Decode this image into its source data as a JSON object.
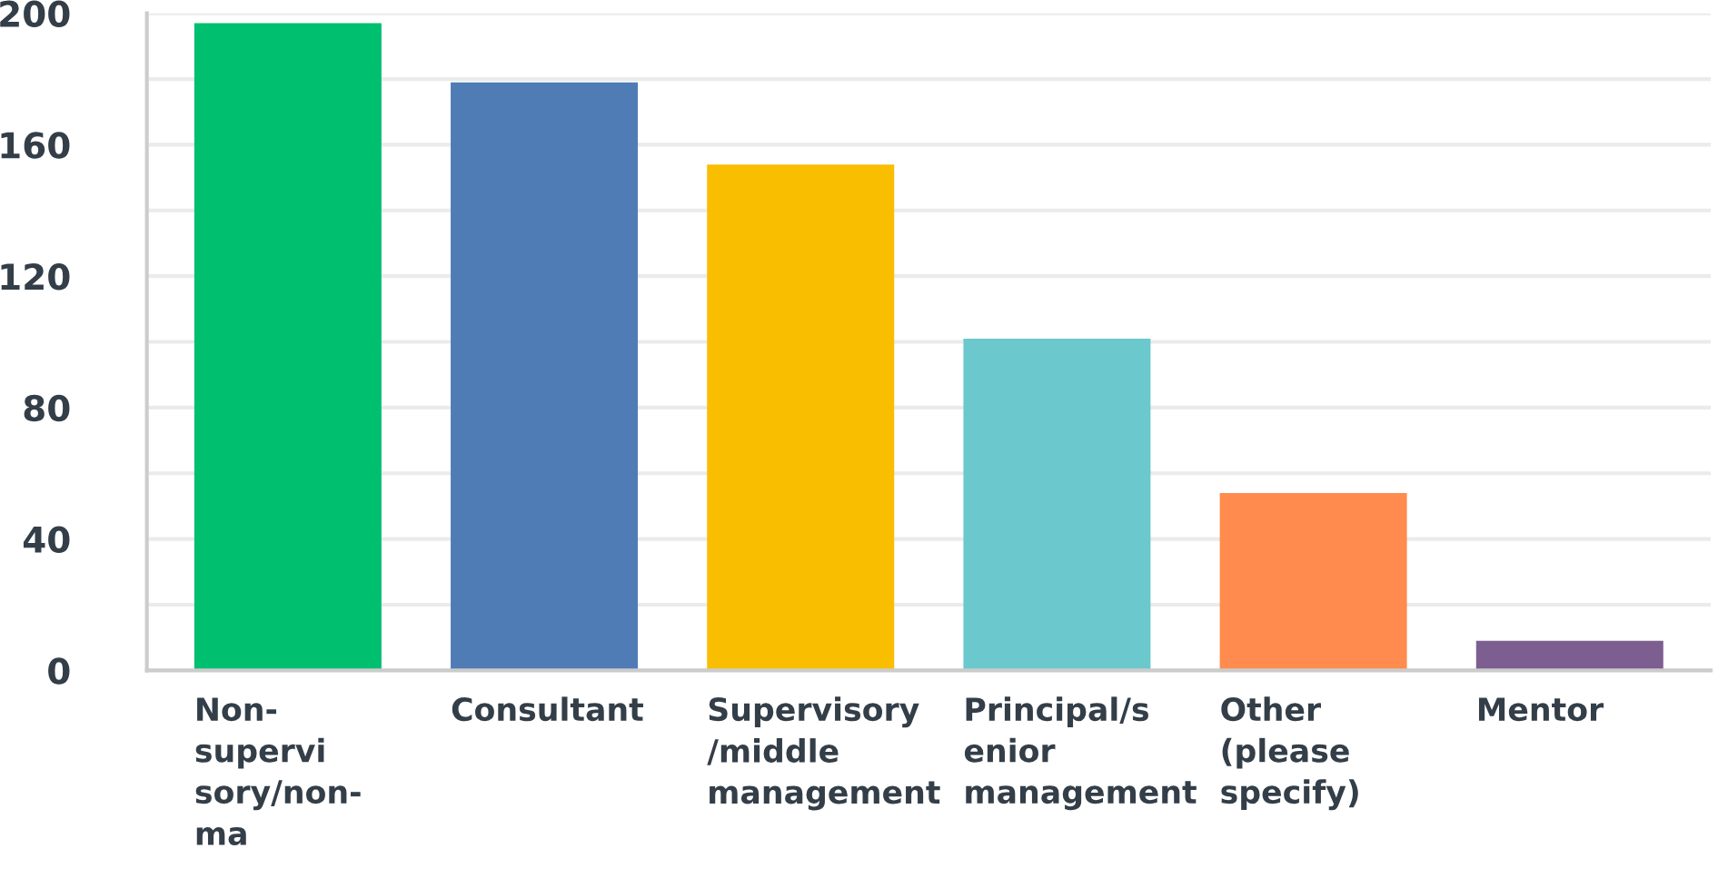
{
  "chart_data": {
    "type": "bar",
    "categories": [
      "Non-\nsupervi\nsory/non-\nma",
      "Consultant",
      "Supervisory\n/middle\nmanagement",
      "Principal/s\nenior\nmanagement",
      "Other\n(please\nspecify)",
      "Mentor"
    ],
    "values": [
      197,
      179,
      154,
      101,
      54,
      9
    ],
    "colors": [
      "#00bf6f",
      "#507cb6",
      "#f9be00",
      "#6bc8cd",
      "#ff8b4f",
      "#7d5e90"
    ],
    "ylim": [
      0,
      200
    ],
    "yticks": [
      0,
      {
        "value": 20,
        "label": null
      },
      40,
      {
        "value": 60,
        "label": null
      },
      80,
      {
        "value": 100,
        "label": null
      },
      120,
      {
        "value": 140,
        "label": null
      },
      160,
      {
        "value": 180,
        "label": null
      },
      200
    ],
    "grid": "y"
  }
}
